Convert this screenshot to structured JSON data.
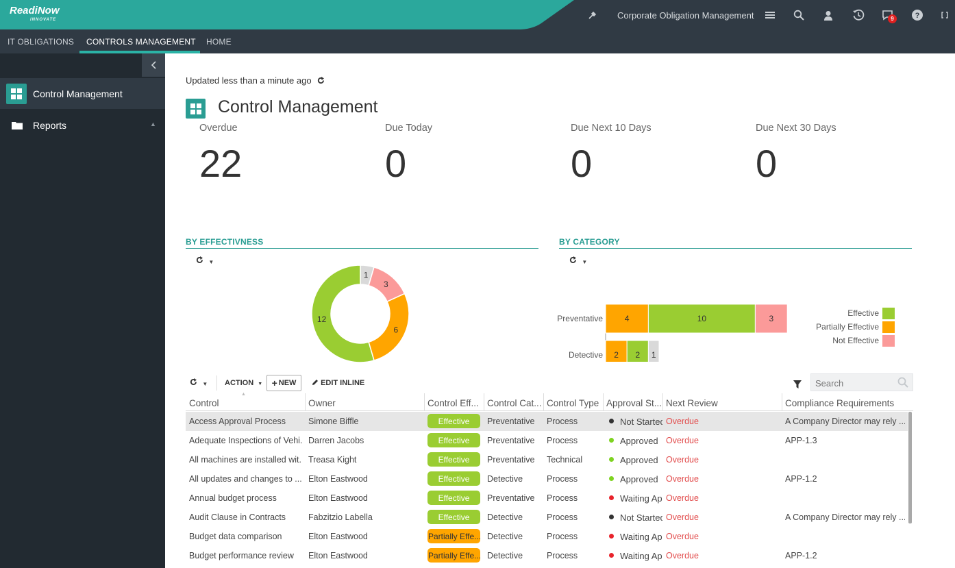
{
  "header": {
    "logo": "ReadiNow",
    "logo_sub": "INNOVATE",
    "app_name": "Corporate Obligation Management",
    "notifications_count": "9",
    "colors": {
      "bar": "#303a44",
      "accent": "#2ba89c"
    }
  },
  "nav": {
    "tabs": [
      "IT OBLIGATIONS",
      "CONTROLS MANAGEMENT",
      "HOME"
    ],
    "active": "CONTROLS MANAGEMENT"
  },
  "sidebar": {
    "items": [
      {
        "label": "Control Management",
        "icon": "grid-icon"
      },
      {
        "label": "Reports",
        "icon": "folder-icon"
      }
    ]
  },
  "main": {
    "updated": "Updated less than a minute ago",
    "title": "Control Management",
    "kpis": [
      {
        "label": "Overdue",
        "value": "22"
      },
      {
        "label": "Due Today",
        "value": "0"
      },
      {
        "label": "Due Next 10 Days",
        "value": "0"
      },
      {
        "label": "Due Next 30 Days",
        "value": "0"
      }
    ],
    "effectiveness_title": "BY EFFECTIVNESS",
    "category_title": "BY CATEGORY"
  },
  "chart_data": [
    {
      "type": "pie",
      "title": "BY EFFECTIVNESS",
      "donut": true,
      "slices": [
        {
          "label": "",
          "value": 1,
          "color": "#d9d9d9"
        },
        {
          "label": "Not Effective",
          "value": 3,
          "color": "#fb9a99"
        },
        {
          "label": "Partially Effective",
          "value": 6,
          "color": "#ffa500"
        },
        {
          "label": "Effective",
          "value": 12,
          "color": "#9acd32"
        }
      ]
    },
    {
      "type": "bar",
      "orientation": "horizontal",
      "stacked": true,
      "title": "BY CATEGORY",
      "categories": [
        "Preventative",
        "Detective"
      ],
      "series": [
        {
          "name": "Partially Effective",
          "values": [
            4,
            2
          ],
          "color": "#ffa500"
        },
        {
          "name": "Effective",
          "values": [
            10,
            2
          ],
          "color": "#9acd32"
        },
        {
          "name": "Not Effective",
          "values": [
            3,
            0
          ],
          "color": "#fb9a99"
        },
        {
          "name": "",
          "values": [
            0,
            1
          ],
          "color": "#d9d9d9"
        }
      ],
      "xticks": [
        "0",
        "2",
        "4",
        "6",
        "8",
        "10",
        "12",
        "14",
        "16"
      ],
      "xlim": [
        0,
        17
      ],
      "legend": [
        "Effective",
        "Partially Effective",
        "Not Effective"
      ],
      "legend_position": "right"
    }
  ],
  "toolbar": {
    "action": "ACTION",
    "new": "NEW",
    "edit_inline": "EDIT INLINE",
    "search_placeholder": "Search"
  },
  "table": {
    "columns": [
      "Control",
      "Owner",
      "Control Eff...",
      "Control Cat...",
      "Control Type",
      "Approval St...",
      "Next Review",
      "Compliance Requirements"
    ],
    "rows": [
      {
        "control": "Access Approval Process",
        "owner": "Simone Biffle",
        "eff": "Effective",
        "cat": "Preventative",
        "type": "Process",
        "approval": "Not Started",
        "status": "grey",
        "review": "Overdue",
        "compliance": "A Company Director may rely ..."
      },
      {
        "control": "Adequate Inspections of Vehi...",
        "owner": "Darren Jacobs",
        "eff": "Effective",
        "cat": "Preventative",
        "type": "Process",
        "approval": "Approved",
        "status": "green",
        "review": "Overdue",
        "compliance": "APP-1.3"
      },
      {
        "control": "All machines are installed wit...",
        "owner": "Treasa Kight",
        "eff": "Effective",
        "cat": "Preventative",
        "type": "Technical",
        "approval": "Approved",
        "status": "green",
        "review": "Overdue",
        "compliance": ""
      },
      {
        "control": "All updates and changes to ...",
        "owner": "Elton Eastwood",
        "eff": "Effective",
        "cat": "Detective",
        "type": "Process",
        "approval": "Approved",
        "status": "green",
        "review": "Overdue",
        "compliance": "APP-1.2"
      },
      {
        "control": "Annual budget process",
        "owner": "Elton Eastwood",
        "eff": "Effective",
        "cat": "Preventative",
        "type": "Process",
        "approval": "Waiting Ap",
        "status": "red",
        "review": "Overdue",
        "compliance": ""
      },
      {
        "control": "Audit Clause in Contracts",
        "owner": "Fabzitzio Labella",
        "eff": "Effective",
        "cat": "Detective",
        "type": "Process",
        "approval": "Not Started",
        "status": "grey",
        "review": "Overdue",
        "compliance": "A Company Director may rely ..."
      },
      {
        "control": "Budget data comparison",
        "owner": "Elton Eastwood",
        "eff": "Partially Effe...",
        "cat": "Detective",
        "type": "Process",
        "approval": "Waiting Ap",
        "status": "red",
        "review": "Overdue",
        "compliance": ""
      },
      {
        "control": "Budget performance review",
        "owner": "Elton Eastwood",
        "eff": "Partially Effe...",
        "cat": "Detective",
        "type": "Process",
        "approval": "Waiting Ap",
        "status": "red",
        "review": "Overdue",
        "compliance": "APP-1.2"
      }
    ]
  }
}
